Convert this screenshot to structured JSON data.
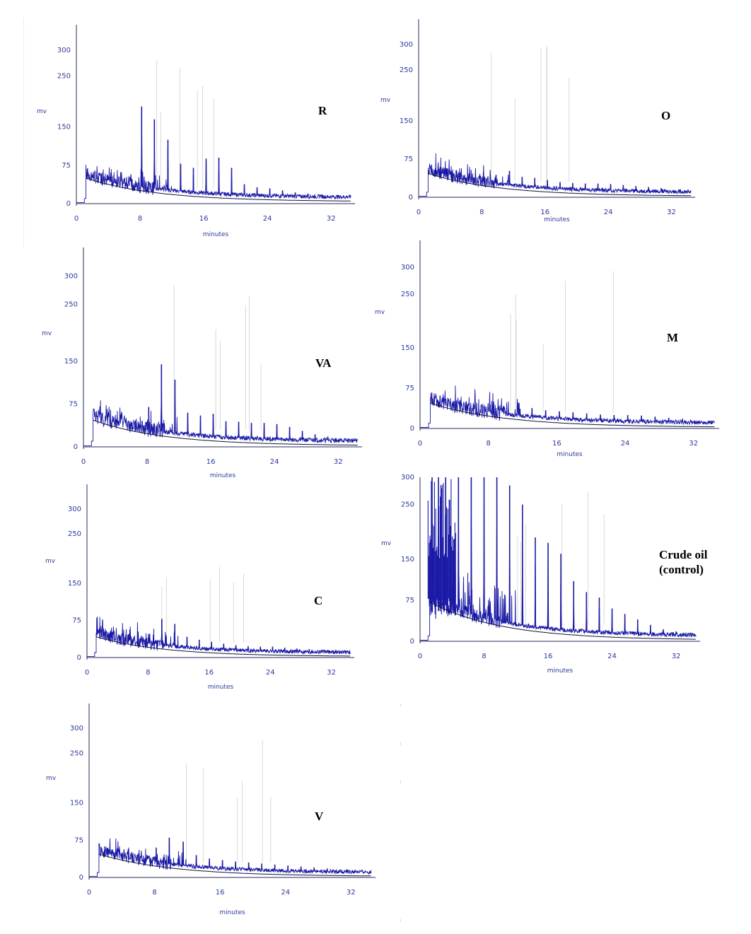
{
  "chart_data": [
    {
      "type": "line",
      "label": "R",
      "xlabel": "minutes",
      "ylabel": "mv",
      "xlim": [
        0,
        35
      ],
      "ylim": [
        0,
        350
      ],
      "xticks": [
        "0",
        "8",
        "16",
        "24",
        "32"
      ],
      "yticks": [
        "0",
        "75",
        "150",
        "250",
        "300"
      ],
      "alkane_peaks": [
        {
          "x": 8.2,
          "y": 190
        },
        {
          "x": 9.8,
          "y": 165
        },
        {
          "x": 11.5,
          "y": 125
        },
        {
          "x": 13.1,
          "y": 78
        },
        {
          "x": 14.7,
          "y": 70
        },
        {
          "x": 16.3,
          "y": 88
        },
        {
          "x": 17.9,
          "y": 90
        },
        {
          "x": 19.5,
          "y": 70
        },
        {
          "x": 21.1,
          "y": 38
        },
        {
          "x": 22.7,
          "y": 32
        },
        {
          "x": 24.3,
          "y": 30
        },
        {
          "x": 25.9,
          "y": 26
        },
        {
          "x": 27.5,
          "y": 22
        },
        {
          "x": 29.1,
          "y": 20
        },
        {
          "x": 30.7,
          "y": 18
        }
      ],
      "baseline_start": 58,
      "baseline_end": 12
    },
    {
      "type": "line",
      "label": "O",
      "xlabel": "minutes",
      "ylabel": "mv",
      "xlim": [
        0,
        35
      ],
      "ylim": [
        0,
        350
      ],
      "xticks": [
        "0",
        "8",
        "16",
        "24",
        "32"
      ],
      "yticks": [
        "0",
        "75",
        "150",
        "250",
        "300"
      ],
      "alkane_peaks": [
        {
          "x": 8.2,
          "y": 48
        },
        {
          "x": 9.8,
          "y": 44
        },
        {
          "x": 11.5,
          "y": 52
        },
        {
          "x": 13.1,
          "y": 40
        },
        {
          "x": 14.7,
          "y": 38
        },
        {
          "x": 16.3,
          "y": 34
        },
        {
          "x": 17.9,
          "y": 30
        },
        {
          "x": 19.5,
          "y": 28
        },
        {
          "x": 21.1,
          "y": 27
        },
        {
          "x": 22.7,
          "y": 27
        },
        {
          "x": 24.3,
          "y": 26
        },
        {
          "x": 25.9,
          "y": 24
        },
        {
          "x": 27.5,
          "y": 22
        },
        {
          "x": 29.1,
          "y": 20
        },
        {
          "x": 30.7,
          "y": 18
        }
      ],
      "baseline_start": 55,
      "baseline_end": 10
    },
    {
      "type": "line",
      "label": "VA",
      "xlabel": "minutes",
      "ylabel": "mv",
      "xlim": [
        0,
        35
      ],
      "ylim": [
        0,
        350
      ],
      "xticks": [
        "0",
        "8",
        "16",
        "24",
        "32"
      ],
      "yticks": [
        "0",
        "75",
        "150",
        "250",
        "300"
      ],
      "alkane_peaks": [
        {
          "x": 8.2,
          "y": 70
        },
        {
          "x": 9.8,
          "y": 145
        },
        {
          "x": 11.5,
          "y": 118
        },
        {
          "x": 13.1,
          "y": 60
        },
        {
          "x": 14.7,
          "y": 55
        },
        {
          "x": 16.3,
          "y": 58
        },
        {
          "x": 17.9,
          "y": 45
        },
        {
          "x": 19.5,
          "y": 44
        },
        {
          "x": 21.1,
          "y": 42
        },
        {
          "x": 22.7,
          "y": 42
        },
        {
          "x": 24.3,
          "y": 40
        },
        {
          "x": 25.9,
          "y": 35
        },
        {
          "x": 27.5,
          "y": 28
        },
        {
          "x": 29.1,
          "y": 22
        },
        {
          "x": 30.7,
          "y": 18
        }
      ],
      "baseline_start": 55,
      "baseline_end": 10
    },
    {
      "type": "line",
      "label": "M",
      "xlabel": "minutes",
      "ylabel": "mv",
      "xlim": [
        0,
        35
      ],
      "ylim": [
        0,
        350
      ],
      "xticks": [
        "0",
        "8",
        "16",
        "24",
        "32"
      ],
      "yticks": [
        "0",
        "75",
        "150",
        "250",
        "300"
      ],
      "alkane_peaks": [
        {
          "x": 8.2,
          "y": 45
        },
        {
          "x": 9.8,
          "y": 42
        },
        {
          "x": 11.5,
          "y": 48
        },
        {
          "x": 13.1,
          "y": 38
        },
        {
          "x": 14.7,
          "y": 34
        },
        {
          "x": 16.3,
          "y": 32
        },
        {
          "x": 17.9,
          "y": 30
        },
        {
          "x": 19.5,
          "y": 28
        },
        {
          "x": 21.1,
          "y": 26
        },
        {
          "x": 22.7,
          "y": 25
        },
        {
          "x": 24.3,
          "y": 25
        },
        {
          "x": 25.9,
          "y": 24
        },
        {
          "x": 27.5,
          "y": 22
        },
        {
          "x": 29.1,
          "y": 20
        },
        {
          "x": 30.7,
          "y": 18
        }
      ],
      "baseline_start": 55,
      "baseline_end": 10
    },
    {
      "type": "line",
      "label": "C",
      "xlabel": "minutes",
      "ylabel": "mv",
      "xlim": [
        0,
        35
      ],
      "ylim": [
        0,
        350
      ],
      "xticks": [
        "0",
        "8",
        "16",
        "24",
        "32"
      ],
      "yticks": [
        "0",
        "75",
        "150",
        "250",
        "300"
      ],
      "alkane_peaks": [
        {
          "x": 8.2,
          "y": 48
        },
        {
          "x": 9.8,
          "y": 78
        },
        {
          "x": 11.5,
          "y": 68
        },
        {
          "x": 13.1,
          "y": 42
        },
        {
          "x": 14.7,
          "y": 36
        },
        {
          "x": 16.3,
          "y": 32
        },
        {
          "x": 17.9,
          "y": 28
        },
        {
          "x": 19.5,
          "y": 25
        },
        {
          "x": 21.1,
          "y": 23
        },
        {
          "x": 22.7,
          "y": 22
        },
        {
          "x": 24.3,
          "y": 22
        },
        {
          "x": 25.9,
          "y": 20
        },
        {
          "x": 27.5,
          "y": 18
        },
        {
          "x": 29.1,
          "y": 17
        },
        {
          "x": 30.7,
          "y": 16
        }
      ],
      "baseline_start": 50,
      "baseline_end": 10
    },
    {
      "type": "line",
      "label": "Crude oil (control)",
      "xlabel": "minutes",
      "ylabel": "mv",
      "xlim": [
        0,
        35
      ],
      "ylim": [
        0,
        300
      ],
      "xticks": [
        "0",
        "8",
        "16",
        "24",
        "32"
      ],
      "yticks": [
        "0",
        "75",
        "150",
        "250",
        "300"
      ],
      "alkane_peaks": [
        {
          "x": 1.5,
          "y": 300
        },
        {
          "x": 2.3,
          "y": 300
        },
        {
          "x": 3.2,
          "y": 300
        },
        {
          "x": 4.8,
          "y": 300
        },
        {
          "x": 6.4,
          "y": 300
        },
        {
          "x": 8.0,
          "y": 300
        },
        {
          "x": 9.6,
          "y": 300
        },
        {
          "x": 11.2,
          "y": 285
        },
        {
          "x": 12.8,
          "y": 250
        },
        {
          "x": 14.4,
          "y": 190
        },
        {
          "x": 16.0,
          "y": 180
        },
        {
          "x": 17.6,
          "y": 160
        },
        {
          "x": 19.2,
          "y": 110
        },
        {
          "x": 20.8,
          "y": 90
        },
        {
          "x": 22.4,
          "y": 80
        },
        {
          "x": 24.0,
          "y": 60
        },
        {
          "x": 25.6,
          "y": 50
        },
        {
          "x": 27.2,
          "y": 40
        },
        {
          "x": 28.8,
          "y": 30
        },
        {
          "x": 30.4,
          "y": 22
        },
        {
          "x": 32.0,
          "y": 18
        }
      ],
      "baseline_start": 80,
      "baseline_end": 10
    },
    {
      "type": "line",
      "label": "V",
      "xlabel": "minutes",
      "ylabel": "mv",
      "xlim": [
        0,
        35
      ],
      "ylim": [
        0,
        350
      ],
      "xticks": [
        "0",
        "8",
        "16",
        "24",
        "32"
      ],
      "yticks": [
        "0",
        "75",
        "150",
        "250",
        "300"
      ],
      "alkane_peaks": [
        {
          "x": 8.2,
          "y": 60
        },
        {
          "x": 9.8,
          "y": 80
        },
        {
          "x": 11.5,
          "y": 72
        },
        {
          "x": 13.1,
          "y": 45
        },
        {
          "x": 14.7,
          "y": 38
        },
        {
          "x": 16.3,
          "y": 35
        },
        {
          "x": 17.9,
          "y": 32
        },
        {
          "x": 19.5,
          "y": 30
        },
        {
          "x": 21.1,
          "y": 28
        },
        {
          "x": 22.7,
          "y": 26
        },
        {
          "x": 24.3,
          "y": 24
        },
        {
          "x": 25.9,
          "y": 22
        },
        {
          "x": 27.5,
          "y": 20
        },
        {
          "x": 29.1,
          "y": 18
        },
        {
          "x": 30.7,
          "y": 16
        }
      ],
      "baseline_start": 55,
      "baseline_end": 10
    }
  ],
  "colors": {
    "trace": "#1a1aa6",
    "trace_dark": "#111133",
    "axis": "#2a2a5a",
    "text": "#2b3a9a",
    "ghost": "#cfcfcf"
  }
}
